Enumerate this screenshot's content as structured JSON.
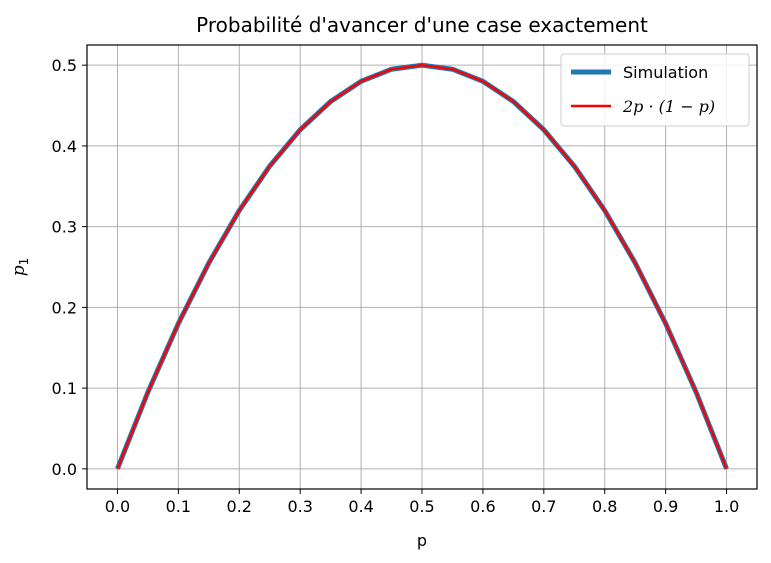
{
  "chart_data": {
    "type": "line",
    "title": "Probabilité d'avancer d'une case exactement",
    "xlabel": "p",
    "ylabel": "p_1",
    "xlim": [
      -0.05,
      1.05
    ],
    "ylim": [
      -0.025,
      0.525
    ],
    "xticks": [
      "0.0",
      "0.1",
      "0.2",
      "0.3",
      "0.4",
      "0.5",
      "0.6",
      "0.7",
      "0.8",
      "0.9",
      "1.0"
    ],
    "yticks": [
      "0.0",
      "0.1",
      "0.2",
      "0.3",
      "0.4",
      "0.5"
    ],
    "grid": true,
    "legend_position": "top-right",
    "x": [
      0.0,
      0.05,
      0.1,
      0.15,
      0.2,
      0.25,
      0.3,
      0.35,
      0.4,
      0.45,
      0.5,
      0.55,
      0.6,
      0.65,
      0.7,
      0.75,
      0.8,
      0.85,
      0.9,
      0.95,
      1.0
    ],
    "series": [
      {
        "name": "Simulation",
        "color": "#1f77b4",
        "values": [
          0.0,
          0.095,
          0.18,
          0.255,
          0.32,
          0.375,
          0.42,
          0.455,
          0.48,
          0.495,
          0.5,
          0.495,
          0.48,
          0.455,
          0.42,
          0.375,
          0.32,
          0.255,
          0.18,
          0.095,
          0.0
        ]
      },
      {
        "name": "2p · (1 − p)",
        "color": "#ff0000",
        "values": [
          0.0,
          0.095,
          0.18,
          0.255,
          0.32,
          0.375,
          0.42,
          0.455,
          0.48,
          0.495,
          0.5,
          0.495,
          0.48,
          0.455,
          0.42,
          0.375,
          0.32,
          0.255,
          0.18,
          0.095,
          0.0
        ]
      }
    ]
  }
}
